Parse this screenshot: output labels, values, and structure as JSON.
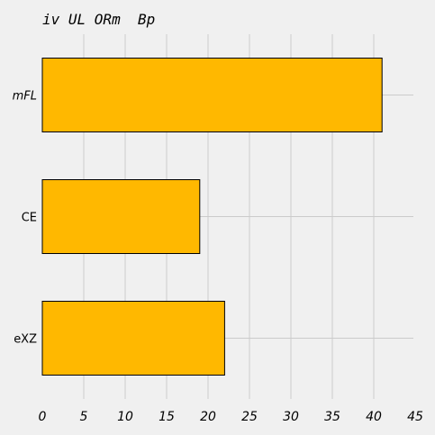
{
  "colors": {
    "background": "#f0f0f0",
    "bar": "#ffb800",
    "grid": "#cbcbcb"
  },
  "chart_data": {
    "type": "bar",
    "orientation": "horizontal",
    "title": "iv UL ORm  Bp",
    "xlabel": "",
    "ylabel": "",
    "categories": [
      "mFL",
      "CE",
      "eXZ"
    ],
    "category_italic": [
      true,
      false,
      false
    ],
    "values": [
      41,
      19,
      22
    ],
    "xlim": [
      0,
      45
    ],
    "xticks": [
      0,
      5,
      10,
      15,
      20,
      25,
      30,
      35,
      40,
      45
    ],
    "grid": true,
    "legend": "none"
  }
}
